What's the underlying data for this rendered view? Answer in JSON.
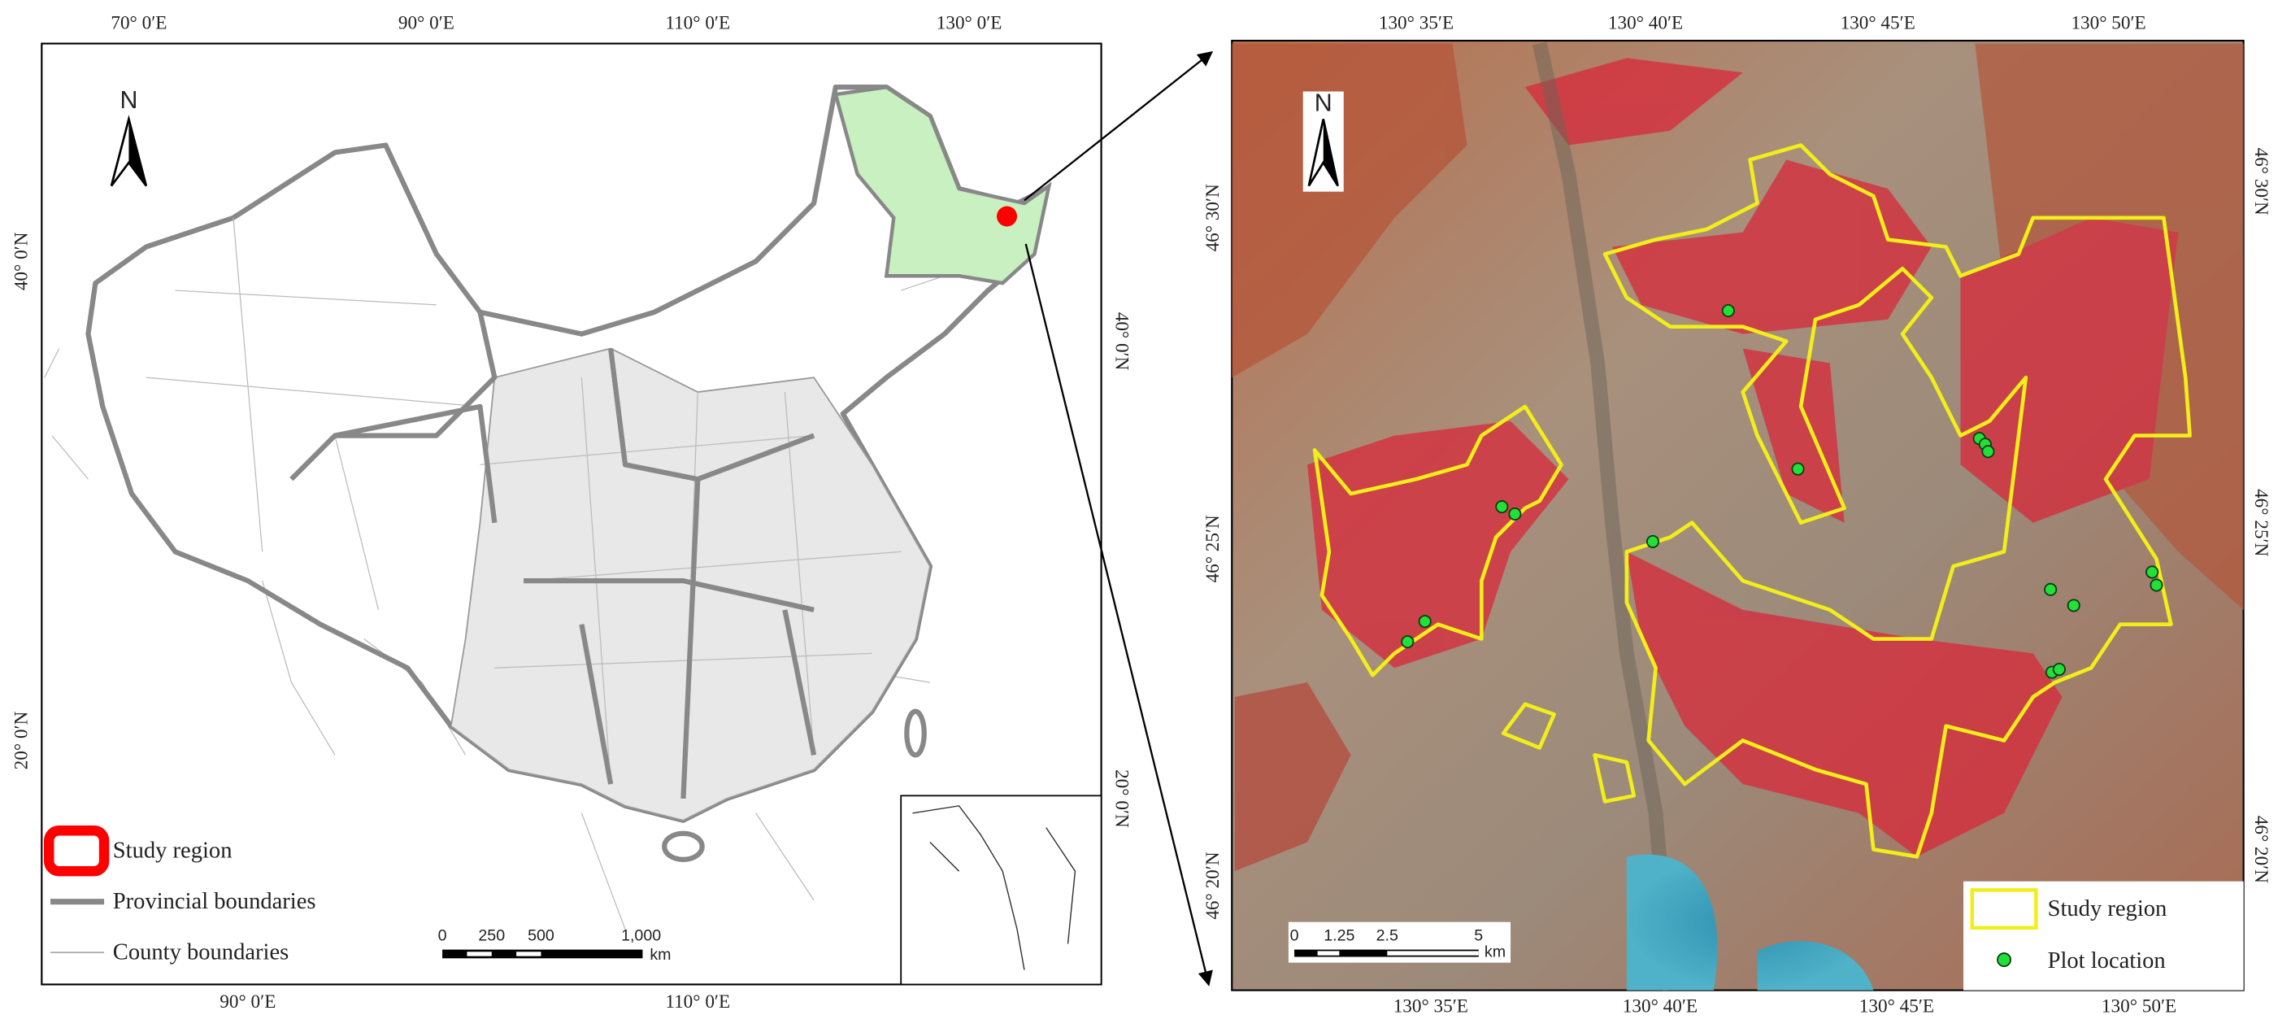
{
  "left_map": {
    "north": "N",
    "top_labels": [
      "70° 0′E",
      "90° 0′E",
      "110° 0′E",
      "130° 0′E"
    ],
    "bottom_labels": [
      "90° 0′E",
      "110° 0′E"
    ],
    "left_labels": [
      "40° 0′N",
      "20° 0′N"
    ],
    "right_labels": [
      "40° 0′N",
      "20° 0′N"
    ],
    "legend": [
      "Study region",
      "Provincial boundaries",
      "County boundaries"
    ],
    "scale_bar": {
      "labels": [
        "0",
        "250",
        "500",
        "1,000"
      ],
      "unit": "km"
    }
  },
  "right_map": {
    "north": "N",
    "top_labels": [
      "130° 35′E",
      "130° 40′E",
      "130° 45′E",
      "130° 50′E"
    ],
    "bottom_labels": [
      "130° 35′E",
      "130° 40′E",
      "130° 45′E",
      "130° 50′E"
    ],
    "left_labels": [
      "46° 30′N",
      "46° 25′N",
      "46° 20′N"
    ],
    "right_labels": [
      "46° 30′N",
      "46° 25′N",
      "46° 20′N"
    ],
    "legend": [
      "Study region",
      "Plot location"
    ],
    "scale_bar": {
      "labels": [
        "0",
        "1.25",
        "2.5",
        "5"
      ],
      "unit": "km"
    }
  }
}
